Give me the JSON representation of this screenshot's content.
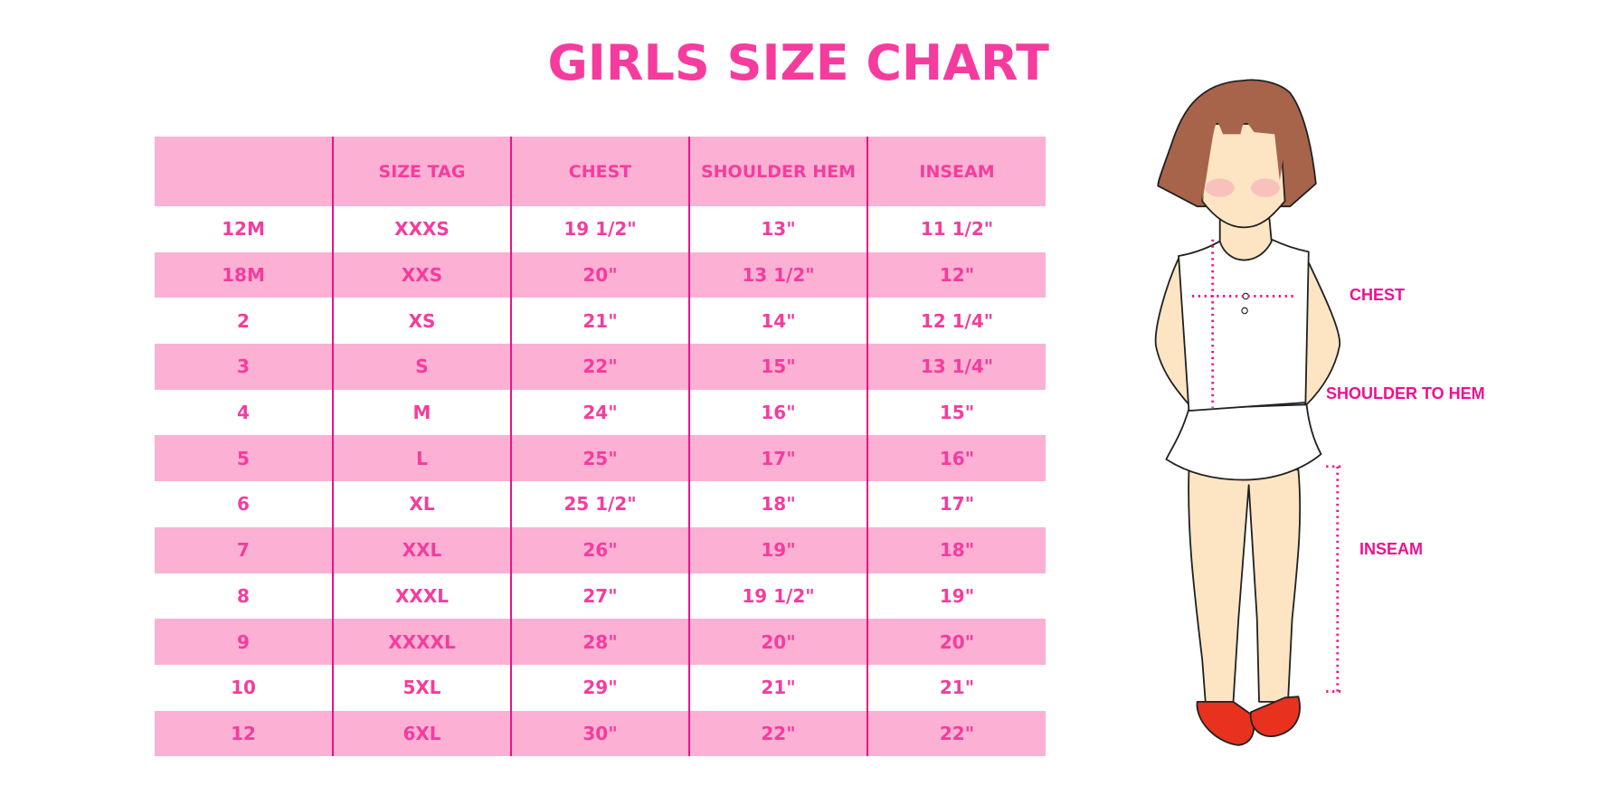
{
  "title": "GIRLS SIZE CHART",
  "colors": {
    "accent": "#f53c9e",
    "row_pink": "#fcb0d4",
    "divider": "#e8138a",
    "label": "#ee1090"
  },
  "table": {
    "headers": [
      "",
      "SIZE TAG",
      "CHEST",
      "SHOULDER HEM",
      "INSEAM"
    ],
    "rows": [
      [
        "12M",
        "XXXS",
        "19 1/2\"",
        "13\"",
        "11 1/2\""
      ],
      [
        "18M",
        "XXS",
        "20\"",
        "13 1/2\"",
        "12\""
      ],
      [
        "2",
        "XS",
        "21\"",
        "14\"",
        "12 1/4\""
      ],
      [
        "3",
        "S",
        "22\"",
        "15\"",
        "13 1/4\""
      ],
      [
        "4",
        "M",
        "24\"",
        "16\"",
        "15\""
      ],
      [
        "5",
        "L",
        "25\"",
        "17\"",
        "16\""
      ],
      [
        "6",
        "XL",
        "25 1/2\"",
        "18\"",
        "17\""
      ],
      [
        "7",
        "XXL",
        "26\"",
        "19\"",
        "18\""
      ],
      [
        "8",
        "XXXL",
        "27\"",
        "19 1/2\"",
        "19\""
      ],
      [
        "9",
        "XXXXL",
        "28\"",
        "20\"",
        "20\""
      ],
      [
        "10",
        "5XL",
        "29\"",
        "21\"",
        "21\""
      ],
      [
        "12",
        "6XL",
        "30\"",
        "22\"",
        "22\""
      ]
    ]
  },
  "figure": {
    "labels": {
      "chest": "CHEST",
      "shoulder_to_hem": "SHOULDER TO HEM",
      "inseam": "INSEAM"
    }
  }
}
